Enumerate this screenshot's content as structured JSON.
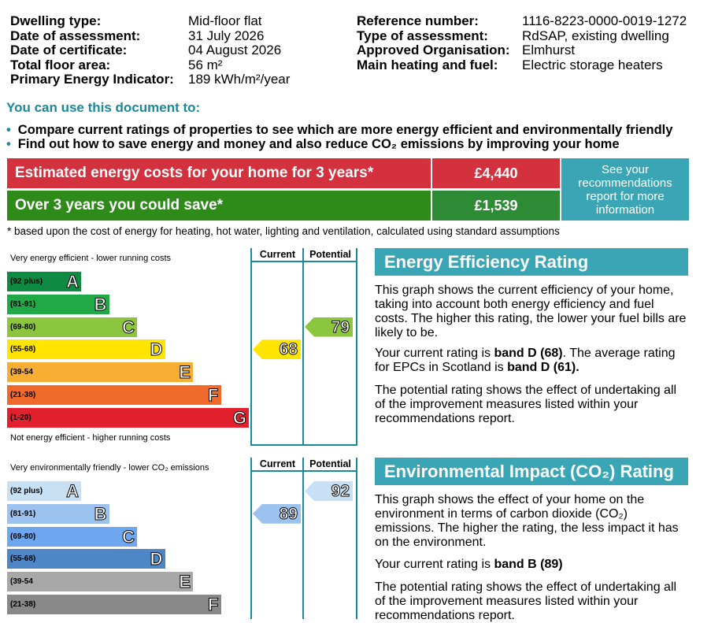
{
  "header": {
    "left": [
      {
        "label": "Dwelling type:",
        "value": "Mid-floor flat"
      },
      {
        "label": "Date of assessment:",
        "value": "31 July 2026"
      },
      {
        "label": "Date of certificate:",
        "value": "04 August 2026"
      },
      {
        "label": "Total floor area:",
        "value": "56 m²"
      },
      {
        "label": "Primary Energy Indicator:",
        "value": "189 kWh/m²/year"
      }
    ],
    "right": [
      {
        "label": "Reference number:",
        "value": "1116-8223-0000-0019-1272"
      },
      {
        "label": "Type of assessment:",
        "value": "RdSAP, existing dwelling"
      },
      {
        "label": "Approved Organisation:",
        "value": "Elmhurst"
      },
      {
        "label": "Main heating and fuel:",
        "value": "Electric storage heaters"
      }
    ]
  },
  "uses": {
    "heading": "You can use this document to:",
    "bullets": [
      "Compare current ratings of properties to see which are more energy efficient and environmentally friendly",
      "Find out how to save energy and money and also reduce CO₂ emissions by improving your home"
    ]
  },
  "costs": {
    "estimated_label": "Estimated energy costs for your home for 3 years*",
    "estimated_value": "£4,440",
    "save_label": "Over 3 years you could save*",
    "save_value": "£1,539",
    "recommendation": "See your recommendations report for more information",
    "footnote": "* based upon the cost of energy for heating, hot water, lighting and ventilation, calculated using standard assumptions",
    "colors": {
      "red": "#d3313e",
      "green": "#2e8b1a",
      "green_dark": "#2d8a35",
      "teal": "#3aa6b5"
    }
  },
  "energy_chart": {
    "top_caption": "Very energy efficient - lower running costs",
    "bottom_caption": "Not energy efficient - higher running costs",
    "current_label": "Current",
    "potential_label": "Potential",
    "bands": [
      {
        "range": "(92 plus)",
        "letter": "A",
        "color": "#0f8a43"
      },
      {
        "range": "(81-91)",
        "letter": "B",
        "color": "#21a847"
      },
      {
        "range": "(69-80)",
        "letter": "C",
        "color": "#8cc63f"
      },
      {
        "range": "(55-68)",
        "letter": "D",
        "color": "#ffe500"
      },
      {
        "range": "(39-54",
        "letter": "E",
        "color": "#f6ae33"
      },
      {
        "range": "(21-38)",
        "letter": "F",
        "color": "#ef6a2b"
      },
      {
        "range": "(1-20)",
        "letter": "G",
        "color": "#e2202e"
      }
    ],
    "current": {
      "value": "68",
      "band": "D",
      "color": "#ffe500"
    },
    "potential": {
      "value": "79",
      "band": "C",
      "color": "#8cc63f"
    }
  },
  "env_chart": {
    "top_caption": "Very environmentally friendly - lower CO₂ emissions",
    "current_label": "Current",
    "potential_label": "Potential",
    "bands": [
      {
        "range": "(92 plus)",
        "letter": "A",
        "color": "#c8e0f4"
      },
      {
        "range": "(81-91)",
        "letter": "B",
        "color": "#9cc3ef"
      },
      {
        "range": "(69-80)",
        "letter": "C",
        "color": "#6ea6f0"
      },
      {
        "range": "(55-68)",
        "letter": "D",
        "color": "#4f86c8"
      },
      {
        "range": "(39-54",
        "letter": "E",
        "color": "#a8a8a8"
      },
      {
        "range": "(21-38)",
        "letter": "F",
        "color": "#888888"
      }
    ],
    "current": {
      "value": "89",
      "band": "B",
      "color": "#9cc3ef"
    },
    "potential": {
      "value": "92",
      "band": "A",
      "color": "#c8e0f4"
    }
  },
  "eer": {
    "title": "Energy Efficiency Rating",
    "p1": "This graph shows the current efficiency of your home, taking into account both energy efficiency and fuel costs. The higher this rating, the lower your fuel bills are likely to be.",
    "p2_pre": "Your current rating is ",
    "p2_b1": "band D (68)",
    "p2_mid": ". The average rating for EPCs in Scotland is ",
    "p2_b2": "band D (61).",
    "p3": "The potential rating shows the effect of undertaking all of the improvement measures listed within your recommendations report."
  },
  "eir": {
    "title": "Environmental Impact (CO₂) Rating",
    "p1": "This graph shows the effect of your home on the environment in terms of carbon dioxide (CO₂) emissions. The higher the rating, the less impact it has on the environment.",
    "p2_pre": "Your current rating is ",
    "p2_b1": "band B (89)",
    "p3": "The potential rating shows the effect of undertaking all of the improvement measures listed within your recommendations report."
  }
}
